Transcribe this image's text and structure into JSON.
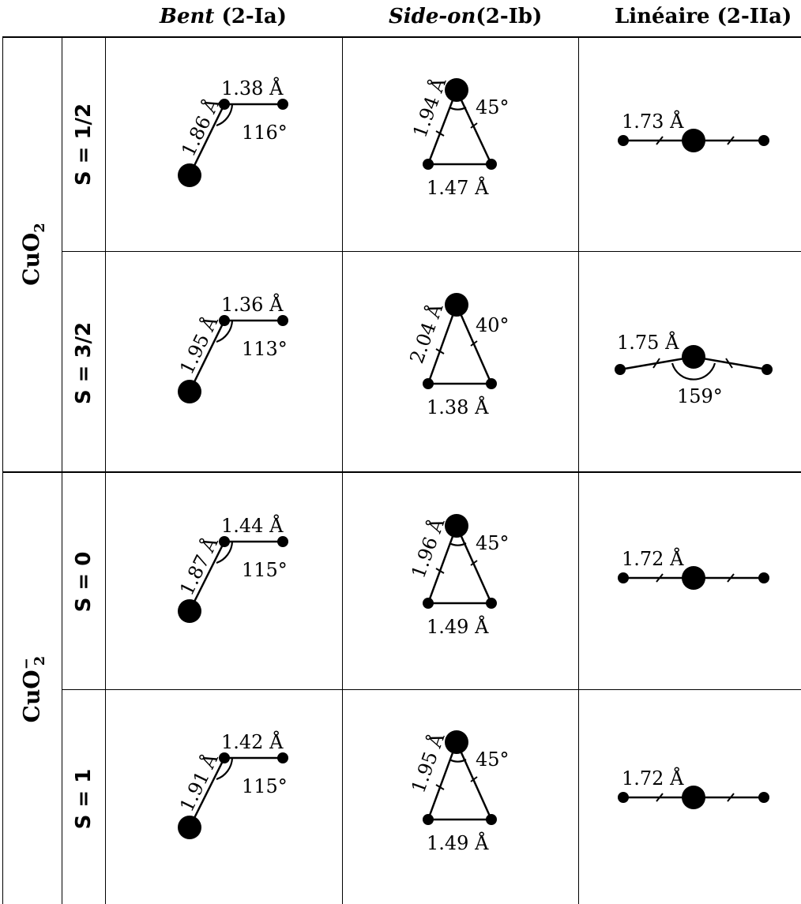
{
  "headers": {
    "bent_italic": "Bent",
    "bent_rest": " (2-Ia)",
    "sideon_italic": "Side-on",
    "sideon_rest": "(2-Ib)",
    "linear": "Linéaire (2-IIa)"
  },
  "molecules": {
    "neutral_base": "CuO",
    "neutral_sub": "2",
    "anion_base": "CuO",
    "anion_sub": "2",
    "anion_sup": "−"
  },
  "rows": [
    {
      "spin": "S = 1/2",
      "bent": {
        "cu_o": "1.86 Å",
        "o_o": "1.38 Å",
        "angle": "116°"
      },
      "sideon": {
        "cu_o": "1.94 Å",
        "o_o": "1.47 Å",
        "angle": "45°"
      },
      "linear": {
        "cu_o": "1.73 Å",
        "angle": ""
      }
    },
    {
      "spin": "S = 3/2",
      "bent": {
        "cu_o": "1.95 Å",
        "o_o": "1.36 Å",
        "angle": "113°"
      },
      "sideon": {
        "cu_o": "2.04 Å",
        "o_o": "1.38 Å",
        "angle": "40°"
      },
      "linear": {
        "cu_o": "1.75 Å",
        "angle": "159°"
      }
    },
    {
      "spin": "S = 0",
      "bent": {
        "cu_o": "1.87 Å",
        "o_o": "1.44 Å",
        "angle": "115°"
      },
      "sideon": {
        "cu_o": "1.96 Å",
        "o_o": "1.49 Å",
        "angle": "45°"
      },
      "linear": {
        "cu_o": "1.72 Å",
        "angle": ""
      }
    },
    {
      "spin": "S = 1",
      "bent": {
        "cu_o": "1.91 Å",
        "o_o": "1.42 Å",
        "angle": "115°"
      },
      "sideon": {
        "cu_o": "1.95 Å",
        "o_o": "1.49 Å",
        "angle": "45°"
      },
      "linear": {
        "cu_o": "1.72 Å",
        "angle": ""
      }
    }
  ]
}
